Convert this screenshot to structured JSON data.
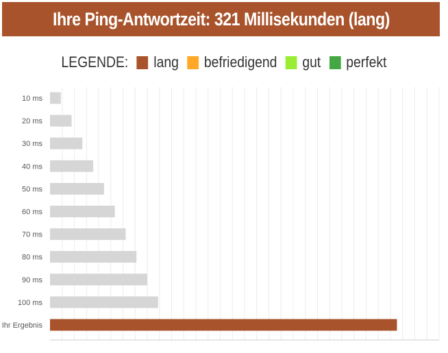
{
  "title": "Ihre Ping-Antwortzeit: 321 Millisekunden (lang)",
  "legend": {
    "label": "LEGENDE:",
    "items": [
      {
        "name": "lang",
        "color": "#a8532b"
      },
      {
        "name": "befriedigend",
        "color": "#ffa726"
      },
      {
        "name": "gut",
        "color": "#99ee33"
      },
      {
        "name": "perfekt",
        "color": "#43a843"
      }
    ]
  },
  "colors": {
    "reference_bar": "#d6d6d6",
    "result_bar": "#a8532b",
    "gridline": "#ececec",
    "axis": "#cccccc"
  },
  "chart_data": {
    "type": "bar",
    "orientation": "horizontal",
    "categories": [
      "10 ms",
      "20 ms",
      "30 ms",
      "40 ms",
      "50 ms",
      "60 ms",
      "70 ms",
      "80 ms",
      "90 ms",
      "100 ms",
      "Ihr Ergebnis"
    ],
    "values": [
      10,
      20,
      30,
      40,
      50,
      60,
      70,
      80,
      90,
      100,
      321
    ],
    "bar_colors": [
      "reference_bar",
      "reference_bar",
      "reference_bar",
      "reference_bar",
      "reference_bar",
      "reference_bar",
      "reference_bar",
      "reference_bar",
      "reference_bar",
      "reference_bar",
      "result_bar"
    ],
    "xlim": [
      0,
      360
    ],
    "grid": true,
    "legend_position": "top-center",
    "xlabel": "",
    "ylabel": ""
  }
}
